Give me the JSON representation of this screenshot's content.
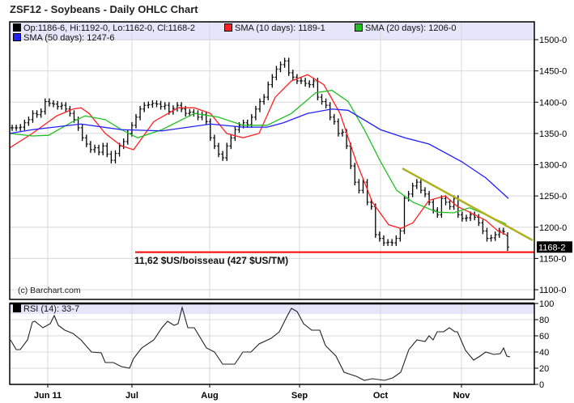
{
  "title": "ZSF12 - Soybeans - Daily OHLC Chart",
  "legend": {
    "ohlc": "Op:1186-6, Hi:1192-0, Lo:1162-0, Cl:1168-2",
    "sma10": "SMA (10 days): 1189-1",
    "sma20": "SMA (20 days): 1206-0",
    "sma50": "SMA (50 days): 1247-6",
    "rsi": "RSI (14): 33-7"
  },
  "credit": "(c) Barchart.com",
  "annotation": "11,62 $US/boisseau (427 $US/TM)",
  "last_price_label": "1168-2",
  "colors": {
    "sma10": "#ff2020",
    "sma20": "#20c020",
    "sma50": "#2020ff",
    "trendline": "#b0b020",
    "support": "#ff0000",
    "legend_band": "#e6e6fa"
  },
  "chart_data": [
    {
      "type": "ohlc",
      "title": "ZSF12 - Soybeans - Daily OHLC Chart",
      "ylim": [
        1100,
        1510
      ],
      "yticks": [
        {
          "v": 1100,
          "label": "1100-0"
        },
        {
          "v": 1150,
          "label": "1150-0"
        },
        {
          "v": 1200,
          "label": "1200-0"
        },
        {
          "v": 1250,
          "label": "1250-0"
        },
        {
          "v": 1300,
          "label": "1300-0"
        },
        {
          "v": 1350,
          "label": "1350-0"
        },
        {
          "v": 1400,
          "label": "1400-0"
        },
        {
          "v": 1450,
          "label": "1450-0"
        },
        {
          "v": 1500,
          "label": "1500-0"
        }
      ],
      "xticks": [
        {
          "bar": 8.8,
          "label": "Jun 11"
        },
        {
          "bar": 29.6,
          "label": "Jul"
        },
        {
          "bar": 48.8,
          "label": "Aug"
        },
        {
          "bar": 71,
          "label": "Sep"
        },
        {
          "bar": 91,
          "label": "Oct"
        },
        {
          "bar": 111,
          "label": "Nov"
        }
      ],
      "grid": true,
      "close": [
        1359,
        1359,
        1360,
        1367,
        1372,
        1382,
        1380,
        1385,
        1401,
        1398,
        1397,
        1393,
        1395,
        1389,
        1382,
        1372,
        1359,
        1343,
        1333,
        1324,
        1327,
        1320,
        1330,
        1317,
        1307,
        1318,
        1330,
        1337,
        1350,
        1363,
        1376,
        1389,
        1395,
        1396,
        1398,
        1397,
        1393,
        1395,
        1385,
        1390,
        1395,
        1389,
        1382,
        1384,
        1382,
        1376,
        1380,
        1369,
        1343,
        1330,
        1317,
        1311,
        1330,
        1343,
        1356,
        1363,
        1367,
        1364,
        1376,
        1389,
        1401,
        1408,
        1428,
        1440,
        1453,
        1460,
        1466,
        1447,
        1440,
        1434,
        1434,
        1430,
        1428,
        1434,
        1408,
        1401,
        1395,
        1376,
        1369,
        1350,
        1352,
        1330,
        1298,
        1272,
        1259,
        1272,
        1240,
        1233,
        1188,
        1182,
        1175,
        1176,
        1175,
        1182,
        1194,
        1246,
        1253,
        1266,
        1272,
        1259,
        1253,
        1240,
        1227,
        1220,
        1246,
        1240,
        1233,
        1246,
        1220,
        1214,
        1215,
        1220,
        1216,
        1207,
        1194,
        1182,
        1183,
        1188,
        1194,
        1193,
        1168.25
      ],
      "last_bar": {
        "open": 1186.75,
        "high": 1192,
        "low": 1162,
        "close": 1168.25
      },
      "series": [
        {
          "name": "SMA (10 days)",
          "color": "#ff2020",
          "points": [
            [
              -0.6,
              1327
            ],
            [
              5,
              1350
            ],
            [
              11,
              1378
            ],
            [
              15,
              1389
            ],
            [
              17,
              1391
            ],
            [
              19,
              1382
            ],
            [
              23,
              1350
            ],
            [
              27,
              1330
            ],
            [
              30,
              1324
            ],
            [
              35,
              1369
            ],
            [
              41,
              1391
            ],
            [
              45,
              1391
            ],
            [
              49,
              1382
            ],
            [
              53,
              1350
            ],
            [
              57,
              1343
            ],
            [
              61,
              1350
            ],
            [
              65,
              1408
            ],
            [
              69,
              1434
            ],
            [
              73,
              1444
            ],
            [
              77,
              1428
            ],
            [
              81,
              1382
            ],
            [
              85,
              1305
            ],
            [
              89,
              1240
            ],
            [
              93,
              1204
            ],
            [
              96,
              1198
            ],
            [
              99,
              1207
            ],
            [
              103,
              1243
            ],
            [
              107,
              1250
            ],
            [
              110,
              1233
            ],
            [
              113,
              1224
            ],
            [
              117,
              1211
            ],
            [
              120,
              1194
            ],
            [
              122,
              1188
            ]
          ]
        },
        {
          "name": "SMA (20 days)",
          "color": "#20c020",
          "points": [
            [
              -0.6,
              1350
            ],
            [
              5,
              1346
            ],
            [
              9,
              1347
            ],
            [
              15,
              1369
            ],
            [
              18,
              1378
            ],
            [
              23,
              1372
            ],
            [
              27,
              1356
            ],
            [
              31,
              1343
            ],
            [
              37,
              1356
            ],
            [
              45,
              1382
            ],
            [
              51,
              1376
            ],
            [
              57,
              1363
            ],
            [
              63,
              1363
            ],
            [
              69,
              1382
            ],
            [
              75,
              1415
            ],
            [
              79,
              1419
            ],
            [
              83,
              1401
            ],
            [
              87,
              1356
            ],
            [
              91,
              1305
            ],
            [
              95,
              1259
            ],
            [
              99,
              1240
            ],
            [
              105,
              1224
            ],
            [
              109,
              1223
            ],
            [
              113,
              1231
            ],
            [
              117,
              1220
            ],
            [
              122,
              1205
            ]
          ]
        },
        {
          "name": "SMA (50 days)",
          "color": "#2020ff",
          "points": [
            [
              -0.6,
              1350
            ],
            [
              5,
              1356
            ],
            [
              17,
              1365
            ],
            [
              27,
              1356
            ],
            [
              37,
              1354
            ],
            [
              49,
              1365
            ],
            [
              57,
              1360
            ],
            [
              63,
              1360
            ],
            [
              67,
              1367
            ],
            [
              73,
              1382
            ],
            [
              79,
              1389
            ],
            [
              83,
              1387
            ],
            [
              91,
              1356
            ],
            [
              97,
              1343
            ],
            [
              103,
              1333
            ],
            [
              111,
              1305
            ],
            [
              117,
              1279
            ],
            [
              122.6,
              1246
            ]
          ]
        }
      ],
      "trendline": [
        [
          96.4,
          1294
        ],
        [
          128.6,
          1179
        ]
      ],
      "support_line": {
        "value": 1160,
        "from_bar": 30.4
      }
    },
    {
      "type": "line",
      "title": "RSI (14): 33-7",
      "ylim": [
        0,
        100
      ],
      "yticks": [
        0,
        20,
        40,
        60,
        80,
        100
      ],
      "grid": true,
      "points": [
        [
          -0.4,
          55
        ],
        [
          1,
          43
        ],
        [
          2,
          43
        ],
        [
          3.8,
          55
        ],
        [
          5,
          77
        ],
        [
          5.6,
          78
        ],
        [
          7.6,
          70
        ],
        [
          9.4,
          75
        ],
        [
          10.4,
          85
        ],
        [
          11.4,
          73
        ],
        [
          13,
          67
        ],
        [
          15,
          63
        ],
        [
          17,
          55
        ],
        [
          19.6,
          40
        ],
        [
          22,
          39
        ],
        [
          23,
          27
        ],
        [
          25,
          27
        ],
        [
          27,
          22
        ],
        [
          29,
          20
        ],
        [
          30,
          32
        ],
        [
          32,
          45
        ],
        [
          35,
          55
        ],
        [
          37,
          70
        ],
        [
          38.4,
          78
        ],
        [
          40,
          73
        ],
        [
          41,
          75
        ],
        [
          42,
          95
        ],
        [
          43.4,
          70
        ],
        [
          45,
          70
        ],
        [
          48,
          45
        ],
        [
          50,
          40
        ],
        [
          52,
          25
        ],
        [
          55,
          25
        ],
        [
          57,
          40
        ],
        [
          59,
          40
        ],
        [
          61,
          50
        ],
        [
          64,
          57
        ],
        [
          66,
          65
        ],
        [
          68,
          85
        ],
        [
          69,
          94
        ],
        [
          70.4,
          90
        ],
        [
          72,
          75
        ],
        [
          74,
          67
        ],
        [
          76,
          67
        ],
        [
          77.4,
          48
        ],
        [
          80,
          35
        ],
        [
          82,
          15
        ],
        [
          85,
          10
        ],
        [
          87,
          5
        ],
        [
          89,
          7
        ],
        [
          92,
          5
        ],
        [
          94,
          8
        ],
        [
          96,
          15
        ],
        [
          98,
          43
        ],
        [
          100,
          55
        ],
        [
          102,
          53
        ],
        [
          103,
          60
        ],
        [
          104,
          55
        ],
        [
          105,
          65
        ],
        [
          106.6,
          65
        ],
        [
          108,
          70
        ],
        [
          109.4,
          65
        ],
        [
          110,
          65
        ],
        [
          112,
          42
        ],
        [
          114,
          30
        ],
        [
          115.6,
          35
        ],
        [
          117,
          40
        ],
        [
          119,
          37
        ],
        [
          120.6,
          38
        ],
        [
          121.4,
          45
        ],
        [
          122.2,
          35
        ],
        [
          123,
          34
        ]
      ]
    }
  ]
}
